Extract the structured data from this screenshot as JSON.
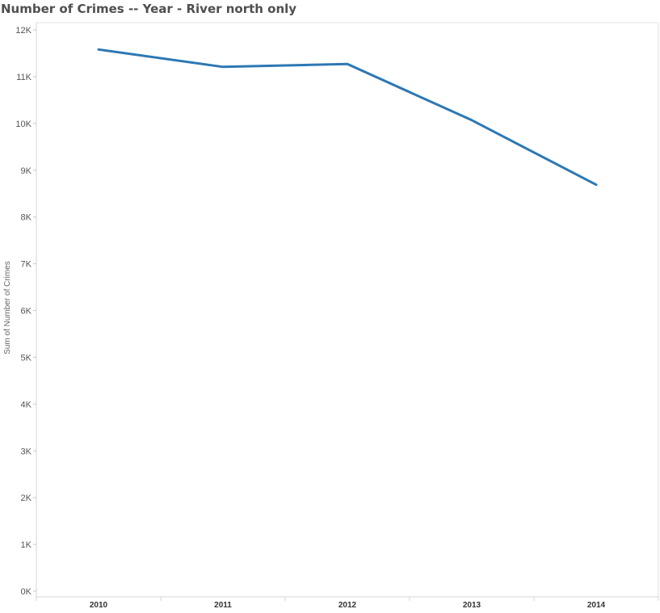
{
  "chart_data": {
    "type": "line",
    "title": "Number of Crimes -- Year - River north only",
    "xlabel": "",
    "ylabel": "Sum of Number of Crimes",
    "categories": [
      "2010",
      "2011",
      "2012",
      "2013",
      "2014"
    ],
    "series": [
      {
        "values": [
          11580,
          11210,
          11270,
          10070,
          8690
        ]
      }
    ],
    "ylim": [
      0,
      12000
    ],
    "yticks": [
      0,
      1000,
      2000,
      3000,
      4000,
      5000,
      6000,
      7000,
      8000,
      9000,
      10000,
      11000,
      12000
    ],
    "ytick_labels": [
      "0K",
      "1K",
      "2K",
      "3K",
      "4K",
      "5K",
      "6K",
      "7K",
      "8K",
      "9K",
      "10K",
      "11K",
      "12K"
    ],
    "grid": false,
    "line_color": "#2c78b4"
  }
}
